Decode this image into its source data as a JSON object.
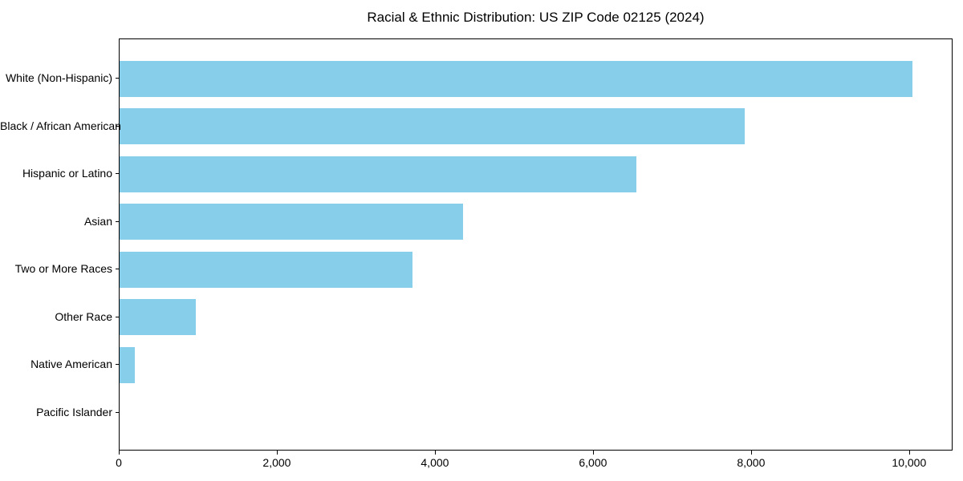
{
  "chart_data": {
    "type": "bar",
    "orientation": "horizontal",
    "title": "Racial & Ethnic Distribution: US ZIP Code 02125 (2024)",
    "categories": [
      "White (Non-Hispanic)",
      "Black / African American",
      "Hispanic or Latino",
      "Asian",
      "Two or More Races",
      "Other Race",
      "Native American",
      "Pacific Islander"
    ],
    "values": [
      10030,
      7910,
      6540,
      4350,
      3710,
      960,
      190,
      0
    ],
    "xlabel": "",
    "ylabel": "",
    "xlim": [
      0,
      10550
    ],
    "xticks": [
      0,
      2000,
      4000,
      6000,
      8000,
      10000
    ],
    "xtick_labels": [
      "0",
      "2,000",
      "4,000",
      "6,000",
      "8,000",
      "10,000"
    ],
    "bar_color": "#87CEEB",
    "spine_color": "#000000",
    "text_color": "#000000",
    "background_color": "#ffffff",
    "grid": false,
    "legend": "none"
  }
}
